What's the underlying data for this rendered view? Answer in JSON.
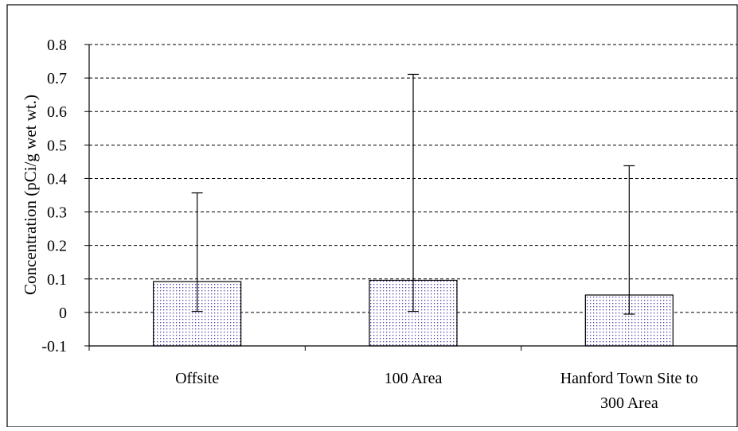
{
  "chart_data": {
    "type": "bar",
    "title": "",
    "xlabel": "",
    "ylabel": "Concentration (pCi/g wet wt.)",
    "ylim": [
      -0.1,
      0.8
    ],
    "yticks": [
      "0.8",
      "0.7",
      "0.6",
      "0.5",
      "0.4",
      "0.3",
      "0.2",
      "0.1",
      "0",
      "-0.1"
    ],
    "ytick_values": [
      0.8,
      0.7,
      0.6,
      0.5,
      0.4,
      0.3,
      0.2,
      0.1,
      0,
      -0.1
    ],
    "grid": true,
    "grid_style": "dashed",
    "legend": "none",
    "categories": [
      [
        "Offsite"
      ],
      [
        "100 Area"
      ],
      [
        "Hanford Town Site to",
        "300 Area"
      ]
    ],
    "series": [
      {
        "values": [
          0.092,
          0.096,
          0.052
        ],
        "error_high": [
          0.357,
          0.711,
          0.438
        ],
        "error_low": [
          0.003,
          0.003,
          -0.005
        ]
      }
    ],
    "colors": {
      "bar_fill": "#ffffff",
      "bar_dots": "#4a3fa8",
      "bar_stroke": "#000000",
      "grid": "#000000"
    }
  }
}
